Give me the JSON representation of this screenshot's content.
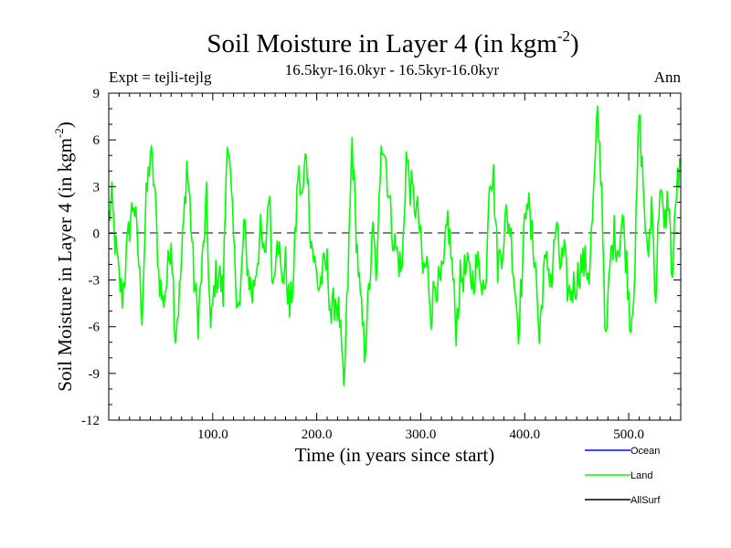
{
  "chart_data": {
    "type": "line",
    "title_main": "Soil Moisture in Layer 4 (in kgm",
    "title_sup": "-2",
    "title_close": ")",
    "subtitle": "16.5kyr-16.0kyr - 16.5kyr-16.0kyr",
    "expt_label": "Expt = tejli-tejlg",
    "season_label": "Ann",
    "xlabel": "Time (in years since start)",
    "ylabel_main": "Soil Moisture in Layer 4 (in kgm",
    "ylabel_sup": "-2",
    "ylabel_close": ")",
    "xlim": [
      0,
      550
    ],
    "ylim": [
      -12,
      9
    ],
    "xticks": [
      100,
      200,
      300,
      400,
      500
    ],
    "xtick_labels": [
      "100.0",
      "200.0",
      "300.0",
      "400.0",
      "500.0"
    ],
    "yticks": [
      -12,
      -9,
      -6,
      -3,
      0,
      3,
      6,
      9
    ],
    "ytick_labels": [
      "-12",
      "-9",
      "-6",
      "-3",
      "0",
      "3",
      "6",
      "9"
    ],
    "zero_line": true,
    "legend": [
      {
        "name": "Ocean",
        "color": "#0000ff"
      },
      {
        "name": "Land",
        "color": "#00ff00"
      },
      {
        "name": "AllSurf",
        "color": "#000000"
      }
    ],
    "series": [
      {
        "name": "Land",
        "color": "#00ff00",
        "keypoints": [
          [
            0,
            1.0
          ],
          [
            3,
            2.0
          ],
          [
            6,
            -0.5
          ],
          [
            10,
            -3.0
          ],
          [
            13,
            -4.0
          ],
          [
            17,
            -1.5
          ],
          [
            20,
            0.5
          ],
          [
            24,
            2.2
          ],
          [
            28,
            -1.0
          ],
          [
            32,
            -5.0
          ],
          [
            36,
            2.0
          ],
          [
            40,
            5.2
          ],
          [
            44,
            3.0
          ],
          [
            48,
            -2.5
          ],
          [
            52,
            -4.5
          ],
          [
            56,
            -3.0
          ],
          [
            60,
            0.0
          ],
          [
            64,
            -6.5
          ],
          [
            68,
            -4.0
          ],
          [
            72,
            0.5
          ],
          [
            75,
            4.5
          ],
          [
            78,
            2.0
          ],
          [
            82,
            -3.0
          ],
          [
            86,
            -5.5
          ],
          [
            90,
            -2.0
          ],
          [
            94,
            2.0
          ],
          [
            98,
            -6.5
          ],
          [
            102,
            -3.0
          ],
          [
            106,
            -2.5
          ],
          [
            110,
            -4.0
          ],
          [
            114,
            6.8
          ],
          [
            118,
            2.0
          ],
          [
            122,
            -3.0
          ],
          [
            126,
            -5.0
          ],
          [
            130,
            0.5
          ],
          [
            134,
            -2.5
          ],
          [
            138,
            -4.0
          ],
          [
            142,
            -2.0
          ],
          [
            146,
            0.0
          ],
          [
            150,
            -2.0
          ],
          [
            154,
            3.0
          ],
          [
            158,
            -3.5
          ],
          [
            162,
            0.5
          ],
          [
            166,
            -3.0
          ],
          [
            170,
            -2.0
          ],
          [
            174,
            -5.0
          ],
          [
            178,
            -2.5
          ],
          [
            182,
            4.0
          ],
          [
            186,
            2.0
          ],
          [
            190,
            5.5
          ],
          [
            194,
            0.0
          ],
          [
            198,
            -2.0
          ],
          [
            202,
            -3.5
          ],
          [
            206,
            -2.5
          ],
          [
            210,
            -2.0
          ],
          [
            214,
            -5.5
          ],
          [
            218,
            -4.0
          ],
          [
            222,
            -5.5
          ],
          [
            226,
            -10.5
          ],
          [
            230,
            -3.0
          ],
          [
            234,
            6.0
          ],
          [
            238,
            0.0
          ],
          [
            242,
            -4.5
          ],
          [
            246,
            -7.5
          ],
          [
            250,
            -4.0
          ],
          [
            254,
            0.0
          ],
          [
            258,
            -3.0
          ],
          [
            262,
            6.5
          ],
          [
            266,
            5.0
          ],
          [
            270,
            2.0
          ],
          [
            274,
            -0.5
          ],
          [
            278,
            -1.5
          ],
          [
            282,
            -2.5
          ],
          [
            286,
            5.0
          ],
          [
            290,
            3.0
          ],
          [
            294,
            2.0
          ],
          [
            298,
            1.0
          ],
          [
            302,
            -2.5
          ],
          [
            306,
            -2.0
          ],
          [
            310,
            -5.0
          ],
          [
            314,
            -3.0
          ],
          [
            318,
            -3.5
          ],
          [
            322,
            -2.5
          ],
          [
            326,
            1.0
          ],
          [
            330,
            -2.0
          ],
          [
            334,
            -6.0
          ],
          [
            338,
            -3.0
          ],
          [
            342,
            -2.5
          ],
          [
            346,
            -2.5
          ],
          [
            350,
            -3.0
          ],
          [
            354,
            -2.0
          ],
          [
            358,
            -2.5
          ],
          [
            362,
            -4.0
          ],
          [
            366,
            4.0
          ],
          [
            370,
            3.5
          ],
          [
            374,
            -2.0
          ],
          [
            378,
            -1.0
          ],
          [
            382,
            1.0
          ],
          [
            386,
            0.5
          ],
          [
            390,
            -3.0
          ],
          [
            394,
            -6.0
          ],
          [
            398,
            -2.0
          ],
          [
            402,
            3.0
          ],
          [
            406,
            0.0
          ],
          [
            410,
            -1.5
          ],
          [
            414,
            -7.0
          ],
          [
            418,
            -2.5
          ],
          [
            422,
            -2.0
          ],
          [
            426,
            -3.0
          ],
          [
            430,
            0.5
          ],
          [
            434,
            -2.0
          ],
          [
            438,
            -1.5
          ],
          [
            442,
            -4.0
          ],
          [
            446,
            -3.5
          ],
          [
            450,
            -3.0
          ],
          [
            454,
            -2.0
          ],
          [
            458,
            -2.0
          ],
          [
            462,
            -2.5
          ],
          [
            466,
            2.0
          ],
          [
            470,
            7.5
          ],
          [
            474,
            3.0
          ],
          [
            478,
            -7.5
          ],
          [
            482,
            -2.0
          ],
          [
            486,
            0.0
          ],
          [
            490,
            -1.0
          ],
          [
            494,
            1.0
          ],
          [
            498,
            -2.0
          ],
          [
            502,
            -6.0
          ],
          [
            506,
            -2.0
          ],
          [
            510,
            7.8
          ],
          [
            514,
            3.0
          ],
          [
            518,
            -2.0
          ],
          [
            522,
            2.0
          ],
          [
            526,
            -4.0
          ],
          [
            530,
            3.5
          ],
          [
            534,
            0.0
          ],
          [
            538,
            2.5
          ],
          [
            542,
            -3.0
          ],
          [
            546,
            3.0
          ],
          [
            550,
            4.0
          ]
        ]
      }
    ]
  }
}
